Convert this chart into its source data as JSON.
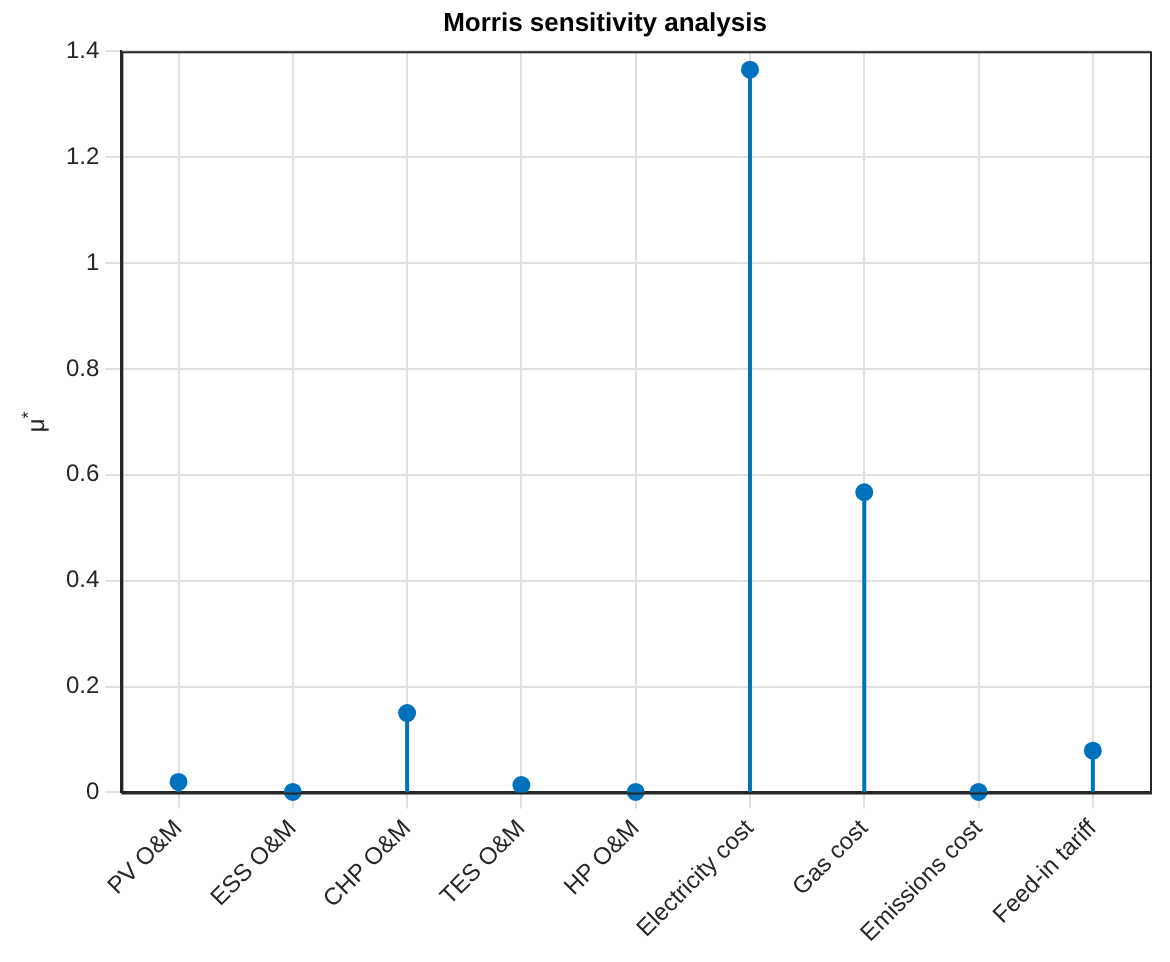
{
  "chart_data": {
    "type": "lollipop",
    "title": "Morris sensitivity analysis",
    "ylabel": "μ$^{*}$",
    "categories": [
      "PV O&M",
      "ESS O&M",
      "CHP O&M",
      "TES O&M",
      "HP O&M",
      "Electricity cost",
      "Gas cost",
      "Emissions cost",
      "Feed-in tariff"
    ],
    "values": [
      0.02,
      0.001,
      0.15,
      0.014,
      0.001,
      1.365,
      0.567,
      0.001,
      0.079
    ],
    "color": "#0072bd",
    "marker": "circle",
    "ylim": [
      0,
      1.4
    ],
    "yticks": [
      0,
      0.2,
      0.4,
      0.6,
      0.8,
      1,
      1.2,
      1.4
    ],
    "grid": true,
    "legend": false
  }
}
